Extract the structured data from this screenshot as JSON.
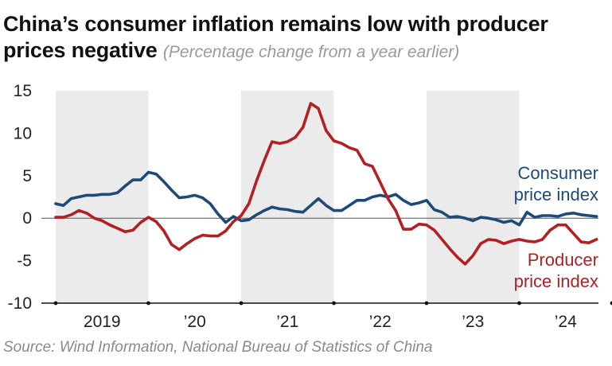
{
  "title": "China’s consumer inflation remains low with producer prices negative",
  "subtitle": "(Percentage change from a year earlier)",
  "source": "Source: Wind Information, National Bureau of Statistics of China",
  "colors": {
    "cpi": "#1d4a78",
    "ppi": "#b21f24",
    "shade": "#ebebeb",
    "axis": "#111111"
  },
  "chart_data": {
    "type": "line",
    "title": "China’s consumer inflation remains low with producer prices negative",
    "subtitle": "(Percentage change from a year earlier)",
    "ylim": [
      -10,
      15
    ],
    "yticks": [
      15,
      10,
      5,
      0,
      -5,
      -10
    ],
    "xlabels": [
      "2019",
      "’20",
      "’21",
      "’22",
      "’23",
      "’24"
    ],
    "x_start": "2019-01",
    "grid": false,
    "shaded_years": [
      "2019",
      "’21",
      "’23"
    ],
    "series": [
      {
        "name": "Consumer price index",
        "label_lines": [
          "Consumer",
          "price index"
        ],
        "values": [
          1.7,
          1.5,
          2.3,
          2.5,
          2.7,
          2.7,
          2.8,
          2.8,
          3.0,
          3.8,
          4.5,
          4.5,
          5.4,
          5.2,
          4.3,
          3.3,
          2.4,
          2.5,
          2.7,
          2.4,
          1.7,
          0.5,
          -0.5,
          0.2,
          -0.3,
          -0.2,
          0.4,
          0.9,
          1.3,
          1.1,
          1.0,
          0.8,
          0.7,
          1.5,
          2.3,
          1.5,
          0.9,
          0.9,
          1.5,
          2.1,
          2.1,
          2.5,
          2.7,
          2.5,
          2.8,
          2.1,
          1.6,
          1.8,
          2.1,
          1.0,
          0.7,
          0.1,
          0.2,
          0.0,
          -0.3,
          0.1,
          0.0,
          -0.2,
          -0.5,
          -0.3,
          -0.8,
          0.7,
          0.1,
          0.3,
          0.3,
          0.2,
          0.5,
          0.6,
          0.4,
          0.3,
          0.2
        ]
      },
      {
        "name": "Producer price index",
        "label_lines": [
          "Producer",
          "price index"
        ],
        "values": [
          0.1,
          0.1,
          0.4,
          0.9,
          0.6,
          0.0,
          -0.3,
          -0.8,
          -1.2,
          -1.6,
          -1.4,
          -0.5,
          0.1,
          -0.4,
          -1.5,
          -3.1,
          -3.7,
          -3.0,
          -2.4,
          -2.0,
          -2.1,
          -2.1,
          -1.5,
          -0.4,
          0.3,
          1.7,
          4.4,
          6.8,
          9.0,
          8.8,
          9.0,
          9.5,
          10.7,
          13.5,
          12.9,
          10.3,
          9.1,
          8.8,
          8.3,
          8.0,
          6.4,
          6.1,
          4.2,
          2.3,
          0.9,
          -1.3,
          -1.3,
          -0.7,
          -0.8,
          -1.4,
          -2.5,
          -3.6,
          -4.6,
          -5.4,
          -4.4,
          -3.0,
          -2.5,
          -2.6,
          -3.0,
          -2.7,
          -2.5,
          -2.7,
          -2.8,
          -2.5,
          -1.4,
          -0.8,
          -0.8,
          -1.8,
          -2.8,
          -2.9,
          -2.5
        ]
      }
    ]
  }
}
